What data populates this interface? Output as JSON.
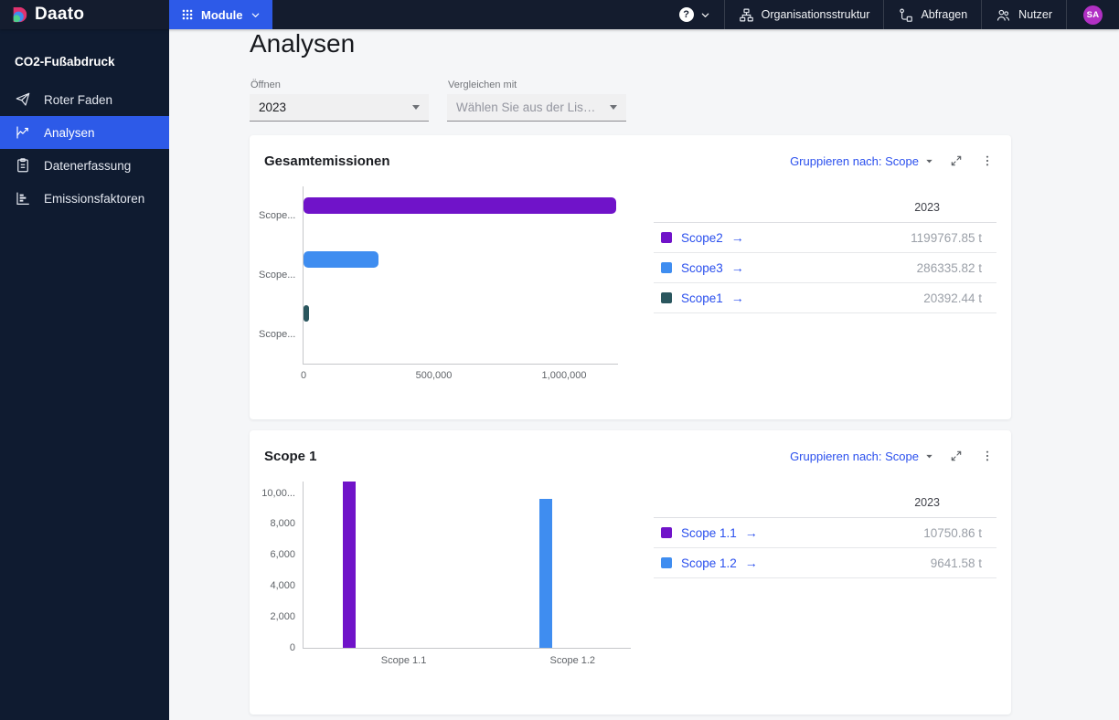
{
  "topbar": {
    "brand": "Daato",
    "module_label": "Module",
    "help_label": "?",
    "avatar_initials": "SA",
    "nav": [
      {
        "label": "Organisationsstruktur",
        "icon": "org-chart"
      },
      {
        "label": "Abfragen",
        "icon": "queries"
      },
      {
        "label": "Nutzer",
        "icon": "users"
      }
    ],
    "colors": {
      "bar": "#141c2e",
      "accent": "#2d5ae8",
      "avatar": "#b130c4"
    }
  },
  "sidebar": {
    "section": "CO2-Fußabdruck",
    "items": [
      {
        "label": "Roter Faden",
        "icon": "send",
        "active": false
      },
      {
        "label": "Analysen",
        "icon": "line-chart",
        "active": true
      },
      {
        "label": "Datenerfassung",
        "icon": "clipboard",
        "active": false
      },
      {
        "label": "Emissionsfaktoren",
        "icon": "hbar-chart",
        "active": false
      }
    ],
    "colors": {
      "bg": "#0f1b30",
      "active": "#2d5ae8"
    }
  },
  "page": {
    "title": "Analysen"
  },
  "filters": {
    "open": {
      "label": "Öffnen",
      "value": "2023"
    },
    "compare": {
      "label": "Vergleichen mit",
      "placeholder": "Wählen Sie aus der Liste a..."
    }
  },
  "cards": [
    {
      "title": "Gesamtemissionen",
      "group_by_label": "Gruppieren nach: Scope",
      "table": {
        "year_header": "2023",
        "rows": [
          {
            "name": "Scope2",
            "color": "#7013c9",
            "value": "1199767.85 t"
          },
          {
            "name": "Scope3",
            "color": "#3f8df0",
            "value": "286335.82 t"
          },
          {
            "name": "Scope1",
            "color": "#2a565e",
            "value": "20392.44 t"
          }
        ]
      }
    },
    {
      "title": "Scope 1",
      "group_by_label": "Gruppieren nach: Scope",
      "table": {
        "year_header": "2023",
        "rows": [
          {
            "name": "Scope 1.1",
            "color": "#7013c9",
            "value": "10750.86 t"
          },
          {
            "name": "Scope 1.2",
            "color": "#3f8df0",
            "value": "9641.58 t"
          }
        ]
      }
    }
  ],
  "chart_data": [
    {
      "type": "bar",
      "orientation": "horizontal",
      "title": "Gesamtemissionen",
      "categories": [
        "Scope2",
        "Scope3",
        "Scope1"
      ],
      "values": [
        1199767.85,
        286335.82,
        20392.44
      ],
      "unit": "t",
      "colors": [
        "#7013c9",
        "#3f8df0",
        "#2a565e"
      ],
      "category_label_display": "Scope...",
      "xlim": [
        0,
        1207000
      ],
      "x_ticks": [
        {
          "value": 0,
          "label": "0"
        },
        {
          "value": 500000,
          "label": "500,000"
        },
        {
          "value": 1000000,
          "label": "1,000,000"
        }
      ],
      "grid": false,
      "legend": false
    },
    {
      "type": "bar",
      "orientation": "vertical",
      "title": "Scope 1",
      "categories": [
        "Scope 1.1",
        "Scope 1.2"
      ],
      "values": [
        10750.86,
        9641.58
      ],
      "unit": "t",
      "colors": [
        "#7013c9",
        "#3f8df0"
      ],
      "ylim": [
        0,
        10800
      ],
      "y_ticks": [
        {
          "value": 0,
          "label": "0"
        },
        {
          "value": 2000,
          "label": "2,000"
        },
        {
          "value": 4000,
          "label": "4,000"
        },
        {
          "value": 6000,
          "label": "6,000"
        },
        {
          "value": 8000,
          "label": "8,000"
        },
        {
          "value": 10000,
          "label": "10,00..."
        }
      ],
      "grid": false,
      "legend": false
    }
  ]
}
